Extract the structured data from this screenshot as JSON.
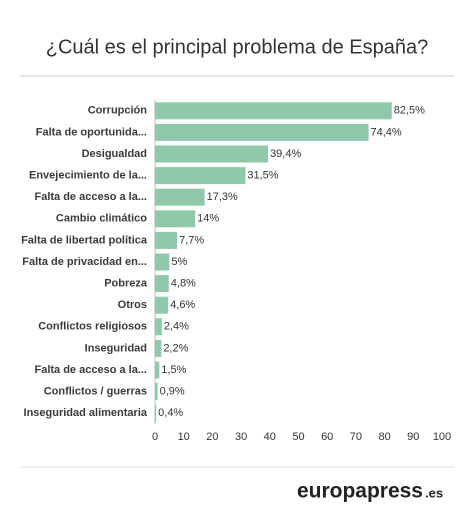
{
  "chart_data": {
    "type": "barh",
    "title": "¿Cuál es el principal problema de España?",
    "categories": [
      "Corrupción",
      "Falta de oportunida...",
      "Desigualdad",
      "Envejecimiento de la...",
      "Falta de acceso a la...",
      "Cambio climático",
      "Falta de libertad política",
      "Falta de privacidad en...",
      "Pobreza",
      "Otros",
      "Conflictos religiosos",
      "Inseguridad",
      "Falta de acceso a la...",
      "Conflictos / guerras",
      "Inseguridad alimentaria"
    ],
    "values": [
      82.5,
      74.4,
      39.4,
      31.5,
      17.3,
      14,
      7.7,
      5,
      4.8,
      4.6,
      2.4,
      2.2,
      1.5,
      0.9,
      0.4
    ],
    "value_labels": [
      "82,5%",
      "74,4%",
      "39,4%",
      "31,5%",
      "17,3%",
      "14%",
      "7,7%",
      "5%",
      "4,8%",
      "4,6%",
      "2,4%",
      "2,2%",
      "1,5%",
      "0,9%",
      "0,4%"
    ],
    "color": "#8fc9a9",
    "xlim": [
      0,
      100
    ],
    "xticks": [
      0,
      10,
      20,
      30,
      40,
      50,
      60,
      70,
      80,
      90,
      100
    ],
    "grid": false,
    "source": {
      "brand": "europapress",
      "suffix": ".es"
    }
  }
}
